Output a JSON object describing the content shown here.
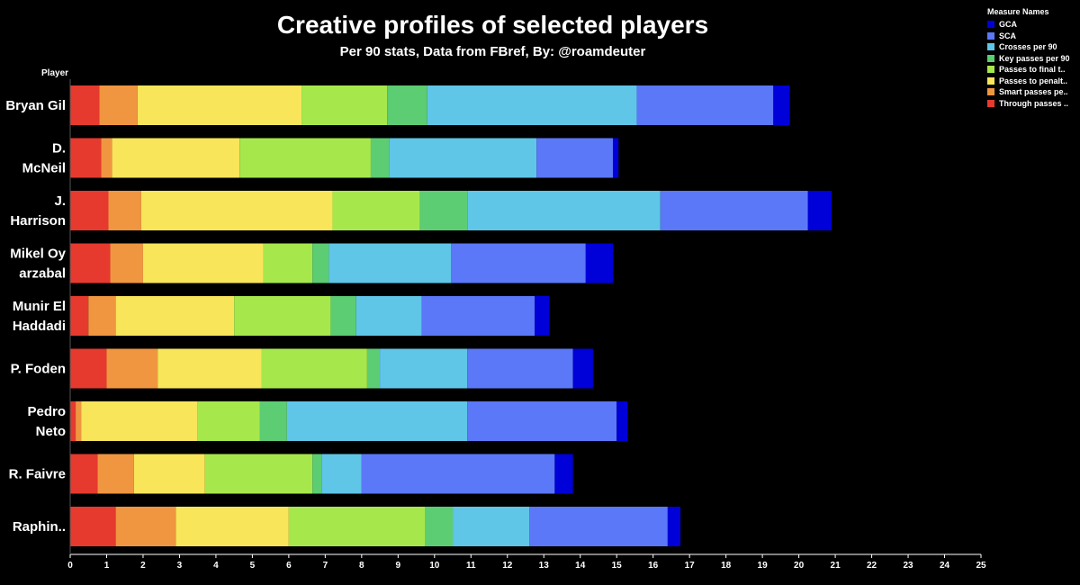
{
  "chart_data": {
    "type": "bar",
    "orientation": "horizontal",
    "stacked": true,
    "title": "Creative profiles of selected players",
    "subtitle": "Per 90 stats, Data from FBref, By: @roamdeuter",
    "ylabel": "Player",
    "xlim": [
      0,
      25
    ],
    "xticks": [
      0,
      1,
      2,
      3,
      4,
      5,
      6,
      7,
      8,
      9,
      10,
      11,
      12,
      13,
      14,
      15,
      16,
      17,
      18,
      19,
      20,
      21,
      22,
      23,
      24,
      25
    ],
    "categories": [
      [
        "Bryan Gil"
      ],
      [
        "D.",
        "McNeil"
      ],
      [
        "J.",
        "Harrison"
      ],
      [
        "Mikel Oy",
        "arzabal"
      ],
      [
        "Munir El",
        "Haddadi"
      ],
      [
        "P. Foden"
      ],
      [
        "Pedro",
        "Neto"
      ],
      [
        "R. Faivre"
      ],
      [
        "Raphin.."
      ]
    ],
    "legend_title": "Measure Names",
    "legend_position": "top-right",
    "legend": [
      {
        "label": "GCA",
        "color": "#0000d8"
      },
      {
        "label": "SCA",
        "color": "#5b78f8"
      },
      {
        "label": "Crosses per 90",
        "color": "#5fc6e8"
      },
      {
        "label": "Key passes per 90",
        "color": "#5ccd72"
      },
      {
        "label": "Passes to final t..",
        "color": "#a6e84c"
      },
      {
        "label": "Passes to penalt..",
        "color": "#f8e55a"
      },
      {
        "label": "Smart passes pe..",
        "color": "#f09640"
      },
      {
        "label": "Through passes ..",
        "color": "#e63a2e"
      }
    ],
    "series": [
      {
        "name": "Through passes ..",
        "color": "#e63a2e",
        "values": [
          0.8,
          0.85,
          1.05,
          1.1,
          0.5,
          1.0,
          0.15,
          0.75,
          1.25
        ]
      },
      {
        "name": "Smart passes pe..",
        "color": "#f09640",
        "values": [
          1.05,
          0.3,
          0.9,
          0.9,
          0.75,
          1.4,
          0.15,
          1.0,
          1.65
        ]
      },
      {
        "name": "Passes to penalt..",
        "color": "#f8e55a",
        "values": [
          4.5,
          3.5,
          5.25,
          3.3,
          3.25,
          2.85,
          3.2,
          1.95,
          3.1
        ]
      },
      {
        "name": "Passes to final t..",
        "color": "#a6e84c",
        "values": [
          2.35,
          3.6,
          2.4,
          1.35,
          2.65,
          2.9,
          1.7,
          2.95,
          3.75
        ]
      },
      {
        "name": "Key passes per 90",
        "color": "#5ccd72",
        "values": [
          1.1,
          0.5,
          1.3,
          0.45,
          0.7,
          0.35,
          0.75,
          0.25,
          0.75
        ]
      },
      {
        "name": "Crosses per 90",
        "color": "#5fc6e8",
        "values": [
          5.75,
          4.05,
          5.3,
          3.35,
          1.8,
          2.4,
          4.95,
          1.1,
          2.1
        ]
      },
      {
        "name": "SCA",
        "color": "#5b78f8",
        "values": [
          3.75,
          2.1,
          4.05,
          3.7,
          3.1,
          2.9,
          4.1,
          5.3,
          3.8
        ]
      },
      {
        "name": "GCA",
        "color": "#0000d8",
        "values": [
          0.45,
          0.15,
          0.65,
          0.75,
          0.4,
          0.55,
          0.3,
          0.5,
          0.35
        ]
      }
    ]
  }
}
